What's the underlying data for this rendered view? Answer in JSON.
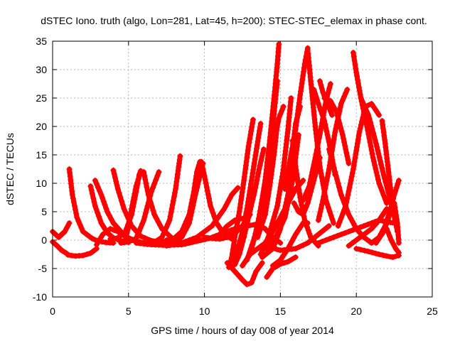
{
  "chart_data": {
    "type": "scatter",
    "title": "dSTEC Iono. truth (algo, Lon=281, Lat=45, h=200): STEC-STEC_elemax in phase cont.",
    "xlabel": "GPS time / hours of day 008 of year 2014",
    "ylabel": "dSTEC  / TECUs",
    "xlim": [
      0,
      25
    ],
    "ylim": [
      -10,
      35
    ],
    "xticks": [
      "0",
      "5",
      "10",
      "15",
      "20",
      "25"
    ],
    "yticks": [
      "-10",
      "-5",
      "0",
      "5",
      "10",
      "15",
      "20",
      "25",
      "30",
      "35"
    ],
    "grid": true,
    "legend": "none",
    "marker": "+",
    "color": "#ff0000",
    "series": [
      {
        "x": [
          0.0,
          0.4,
          0.8,
          1.1
        ],
        "y": [
          1.5,
          0.5,
          1.5,
          3.0
        ]
      },
      {
        "x": [
          0.0,
          0.3,
          0.6,
          0.9,
          1.0
        ],
        "y": [
          -0.3,
          -1.0,
          -1.8,
          -2.3,
          -2.5
        ]
      },
      {
        "x": [
          1.1,
          1.3,
          1.6,
          2.0,
          2.6,
          3.0,
          3.5,
          4.0
        ],
        "y": [
          12.5,
          8.0,
          4.0,
          1.5,
          0.3,
          -0.2,
          -0.4,
          -0.5
        ]
      },
      {
        "x": [
          1.0,
          1.5,
          2.0,
          2.5,
          2.9
        ],
        "y": [
          -2.6,
          -2.8,
          -2.7,
          -2.3,
          -1.5
        ]
      },
      {
        "x": [
          2.5,
          2.8,
          3.2,
          3.6,
          4.0,
          4.5,
          5.0
        ],
        "y": [
          9.5,
          6.0,
          3.0,
          1.3,
          0.4,
          -0.1,
          -0.4
        ]
      },
      {
        "x": [
          2.8,
          3.2,
          3.6,
          4.0,
          4.5,
          5.0,
          5.5,
          6.0
        ],
        "y": [
          10.5,
          8.0,
          5.0,
          3.0,
          1.5,
          0.4,
          -0.2,
          -0.5
        ]
      },
      {
        "x": [
          2.9,
          3.3,
          3.8,
          4.3,
          4.8,
          5.3,
          5.8,
          6.2
        ],
        "y": [
          -0.8,
          1.0,
          2.0,
          1.5,
          0.6,
          0.0,
          -0.4,
          -0.6
        ]
      },
      {
        "x": [
          4.0,
          4.3,
          4.7,
          5.2,
          5.8,
          6.4,
          7.0
        ],
        "y": [
          12.3,
          9.0,
          5.5,
          2.5,
          0.7,
          0.0,
          -0.4
        ]
      },
      {
        "x": [
          3.8,
          4.3,
          4.8,
          5.2,
          5.5,
          5.7,
          5.8
        ],
        "y": [
          0.2,
          0.4,
          1.5,
          4.5,
          8.5,
          11.5,
          12.2
        ]
      },
      {
        "x": [
          4.8,
          5.0,
          5.2,
          5.5,
          5.8
        ],
        "y": [
          0.0,
          2.5,
          5.5,
          9.5,
          12.0
        ]
      },
      {
        "x": [
          4.5,
          5.0,
          5.5,
          6.0,
          6.5,
          7.0
        ],
        "y": [
          -0.5,
          -0.3,
          0.3,
          3.5,
          8.5,
          12.0
        ]
      },
      {
        "x": [
          6.0,
          6.3,
          6.7,
          7.2,
          7.8,
          8.4
        ],
        "y": [
          12.0,
          8.0,
          4.5,
          2.0,
          0.5,
          -0.3
        ]
      },
      {
        "x": [
          6.2,
          6.7,
          7.2,
          7.7,
          8.1,
          8.4
        ],
        "y": [
          -0.7,
          -0.4,
          0.5,
          3.5,
          9.0,
          14.8
        ]
      },
      {
        "x": [
          7.5,
          8.0,
          8.5,
          9.0,
          9.3,
          9.5,
          9.7
        ],
        "y": [
          0.0,
          0.3,
          1.5,
          4.5,
          8.5,
          12.0,
          13.8
        ]
      },
      {
        "x": [
          7.0,
          7.8,
          8.5,
          9.0,
          9.4,
          9.9
        ],
        "y": [
          -0.3,
          -0.2,
          0.5,
          3.0,
          8.0,
          13.5
        ]
      },
      {
        "x": [
          9.8,
          10.1,
          10.4,
          10.8,
          11.3,
          11.8
        ],
        "y": [
          13.8,
          10.0,
          6.0,
          3.0,
          1.0,
          0.2
        ]
      },
      {
        "x": [
          5.5,
          6.5,
          7.5,
          8.5,
          9.5,
          10.3,
          11.0,
          11.5,
          12.0,
          12.5
        ],
        "y": [
          -0.5,
          -0.8,
          -0.9,
          -0.8,
          -0.2,
          0.3,
          1.0,
          2.5,
          3.5,
          3.8
        ]
      },
      {
        "x": [
          7.5,
          8.5,
          9.5,
          10.5,
          11.3,
          11.8,
          12.2
        ],
        "y": [
          -1.0,
          -0.5,
          0.5,
          2.5,
          5.5,
          8.0,
          9.2
        ]
      },
      {
        "x": [
          10.0,
          10.5,
          11.0,
          11.5,
          12.0,
          12.5,
          13.0
        ],
        "y": [
          0.5,
          0.3,
          0.2,
          0.5,
          1.2,
          2.5,
          4.5
        ]
      },
      {
        "x": [
          11.5,
          12.0,
          12.5,
          13.0,
          13.5,
          14.0,
          14.5,
          15.0
        ],
        "y": [
          1.5,
          2.0,
          2.3,
          2.6,
          2.8,
          2.0,
          0.5,
          -0.5
        ]
      },
      {
        "x": [
          11.6,
          11.8,
          12.0,
          12.3,
          12.6,
          12.9,
          13.2
        ],
        "y": [
          -4.8,
          -3.0,
          0.5,
          5.0,
          10.5,
          16.5,
          21.2
        ]
      },
      {
        "x": [
          11.9,
          12.2,
          12.5,
          12.8,
          13.1,
          13.4,
          13.7
        ],
        "y": [
          -3.5,
          -1.5,
          1.5,
          5.5,
          10.5,
          15.5,
          20.5
        ]
      },
      {
        "x": [
          12.0,
          12.3,
          12.6,
          12.9,
          13.3,
          13.6,
          13.9
        ],
        "y": [
          -4.3,
          -2.5,
          0.5,
          4.0,
          8.5,
          12.5,
          16.0
        ]
      },
      {
        "x": [
          11.5,
          12.0,
          12.5,
          12.8,
          13.1,
          13.4,
          13.8
        ],
        "y": [
          -4.0,
          -5.5,
          -7.0,
          -7.8,
          -7.5,
          -5.5,
          -4.0
        ]
      },
      {
        "x": [
          12.5,
          13.0,
          13.5,
          14.0,
          14.3,
          14.6,
          14.8,
          14.9
        ],
        "y": [
          -4.5,
          -2.5,
          2.5,
          10.5,
          17.5,
          25.5,
          31.0,
          34.5
        ]
      },
      {
        "x": [
          12.8,
          13.3,
          13.8,
          14.2,
          14.5,
          14.7,
          14.8
        ],
        "y": [
          -3.5,
          0.5,
          6.5,
          13.0,
          20.0,
          25.5,
          28.0
        ]
      },
      {
        "x": [
          13.0,
          13.5,
          14.0,
          14.5,
          15.0,
          15.5,
          16.0,
          16.5
        ],
        "y": [
          -2.5,
          -1.5,
          -0.5,
          1.5,
          4.0,
          6.5,
          9.0,
          10.5
        ]
      },
      {
        "x": [
          13.5,
          14.0,
          14.3,
          14.6,
          14.8
        ],
        "y": [
          0.5,
          4.5,
          9.5,
          15.5,
          20.5
        ]
      },
      {
        "x": [
          13.7,
          14.0,
          14.3,
          14.6,
          14.9,
          15.2
        ],
        "y": [
          4.5,
          8.0,
          12.5,
          17.5,
          21.5,
          23.5
        ]
      },
      {
        "x": [
          13.7,
          14.2,
          14.8,
          15.2,
          15.5,
          15.7
        ],
        "y": [
          -2.5,
          0.5,
          6.0,
          12.5,
          19.5,
          25.0
        ]
      },
      {
        "x": [
          13.8,
          14.5,
          15.0,
          15.5,
          15.8,
          16.0,
          16.3
        ],
        "y": [
          -3.0,
          -1.5,
          2.0,
          8.0,
          15.5,
          20.5,
          23.5
        ]
      },
      {
        "x": [
          14.0,
          14.7,
          15.3,
          15.8,
          16.2
        ],
        "y": [
          -1.5,
          0.5,
          4.0,
          10.5,
          18.5
        ]
      },
      {
        "x": [
          14.1,
          14.5,
          15.0,
          15.5,
          16.0
        ],
        "y": [
          -6.5,
          -5.0,
          -4.2,
          -3.8,
          -3.0
        ]
      },
      {
        "x": [
          14.5,
          15.0,
          15.5,
          16.0,
          16.5,
          16.8
        ],
        "y": [
          -4.5,
          -3.5,
          -1.5,
          1.0,
          3.0,
          3.0
        ]
      },
      {
        "x": [
          14.0,
          15.0,
          16.0,
          16.8,
          17.5,
          18.2
        ],
        "y": [
          -1.0,
          -1.8,
          -1.5,
          -0.5,
          1.0,
          2.5
        ]
      },
      {
        "x": [
          15.3,
          15.6,
          16.0,
          16.3,
          16.6,
          16.8
        ],
        "y": [
          9.0,
          13.5,
          19.5,
          25.5,
          31.0,
          33.8
        ]
      },
      {
        "x": [
          15.8,
          16.0,
          16.3,
          16.6,
          17.0,
          17.5
        ],
        "y": [
          17.5,
          13.0,
          7.5,
          3.5,
          0.5,
          -1.0
        ]
      },
      {
        "x": [
          15.9,
          16.2,
          16.5,
          16.8,
          17.2,
          17.6
        ],
        "y": [
          6.5,
          5.0,
          4.5,
          6.5,
          10.5,
          14.5
        ]
      },
      {
        "x": [
          16.8,
          17.0,
          17.3,
          17.6,
          18.0,
          18.5
        ],
        "y": [
          33.5,
          28.0,
          20.0,
          13.0,
          7.0,
          3.0
        ]
      },
      {
        "x": [
          16.5,
          16.9,
          17.3,
          17.7,
          18.0,
          18.3
        ],
        "y": [
          7.0,
          9.5,
          14.5,
          20.0,
          24.5,
          27.5
        ]
      },
      {
        "x": [
          17.5,
          17.8,
          18.2,
          18.6,
          19.0,
          19.4
        ],
        "y": [
          3.5,
          7.0,
          12.5,
          19.0,
          24.0,
          26.5
        ]
      },
      {
        "x": [
          17.2,
          17.5,
          17.9,
          18.3,
          18.6
        ],
        "y": [
          26.5,
          24.0,
          21.0,
          16.0,
          11.5
        ]
      },
      {
        "x": [
          17.6,
          17.8,
          18.1,
          18.4
        ],
        "y": [
          28.0,
          26.0,
          24.0,
          22.0
        ]
      },
      {
        "x": [
          17.9,
          18.3,
          18.7,
          19.1,
          19.5
        ],
        "y": [
          25.0,
          24.5,
          22.5,
          18.5,
          13.5
        ]
      },
      {
        "x": [
          18.2,
          18.6,
          19.0,
          19.5,
          20.0,
          20.5,
          21.0
        ],
        "y": [
          16.0,
          12.0,
          8.0,
          4.5,
          2.0,
          0.5,
          -0.5
        ]
      },
      {
        "x": [
          17.5,
          18.5,
          19.5,
          20.5,
          21.5,
          22.5
        ],
        "y": [
          -0.5,
          0.5,
          1.5,
          2.5,
          3.5,
          3.0
        ]
      },
      {
        "x": [
          18.8,
          19.3,
          19.8,
          20.2,
          20.6,
          21.0,
          21.5
        ],
        "y": [
          2.5,
          6.0,
          12.5,
          19.0,
          23.5,
          24.0,
          22.0
        ]
      },
      {
        "x": [
          19.8,
          20.0,
          20.3,
          20.7,
          21.1,
          21.5,
          22.0
        ],
        "y": [
          33.0,
          29.5,
          25.0,
          20.0,
          14.5,
          10.0,
          6.5
        ]
      },
      {
        "x": [
          20.3,
          20.8,
          21.3,
          21.8,
          22.3,
          22.6
        ],
        "y": [
          25.0,
          22.0,
          17.0,
          11.5,
          6.5,
          3.0
        ]
      },
      {
        "x": [
          19.5,
          20.0,
          20.5,
          21.0,
          21.5,
          22.0
        ],
        "y": [
          -1.0,
          0.0,
          1.0,
          2.0,
          3.5,
          5.5
        ]
      },
      {
        "x": [
          21.7,
          21.9,
          22.1,
          22.3,
          22.5,
          22.7
        ],
        "y": [
          21.0,
          17.0,
          12.5,
          8.0,
          4.5,
          1.5
        ]
      },
      {
        "x": [
          21.0,
          21.5,
          21.9,
          22.2,
          22.5,
          22.8
        ],
        "y": [
          -0.5,
          0.5,
          2.5,
          5.0,
          8.0,
          10.5
        ]
      },
      {
        "x": [
          21.3,
          21.8,
          22.2,
          22.5,
          22.7,
          22.8
        ],
        "y": [
          -0.5,
          1.5,
          4.5,
          6.5,
          3.0,
          -0.5
        ]
      },
      {
        "x": [
          20.0,
          20.8,
          21.5,
          22.0,
          22.4,
          22.8
        ],
        "y": [
          -1.5,
          -2.0,
          -2.5,
          -2.8,
          -3.0,
          -2.7
        ]
      },
      {
        "x": [
          22.0,
          22.3,
          22.6,
          22.8
        ],
        "y": [
          2.0,
          0.0,
          -1.5,
          -2.2
        ]
      }
    ]
  }
}
